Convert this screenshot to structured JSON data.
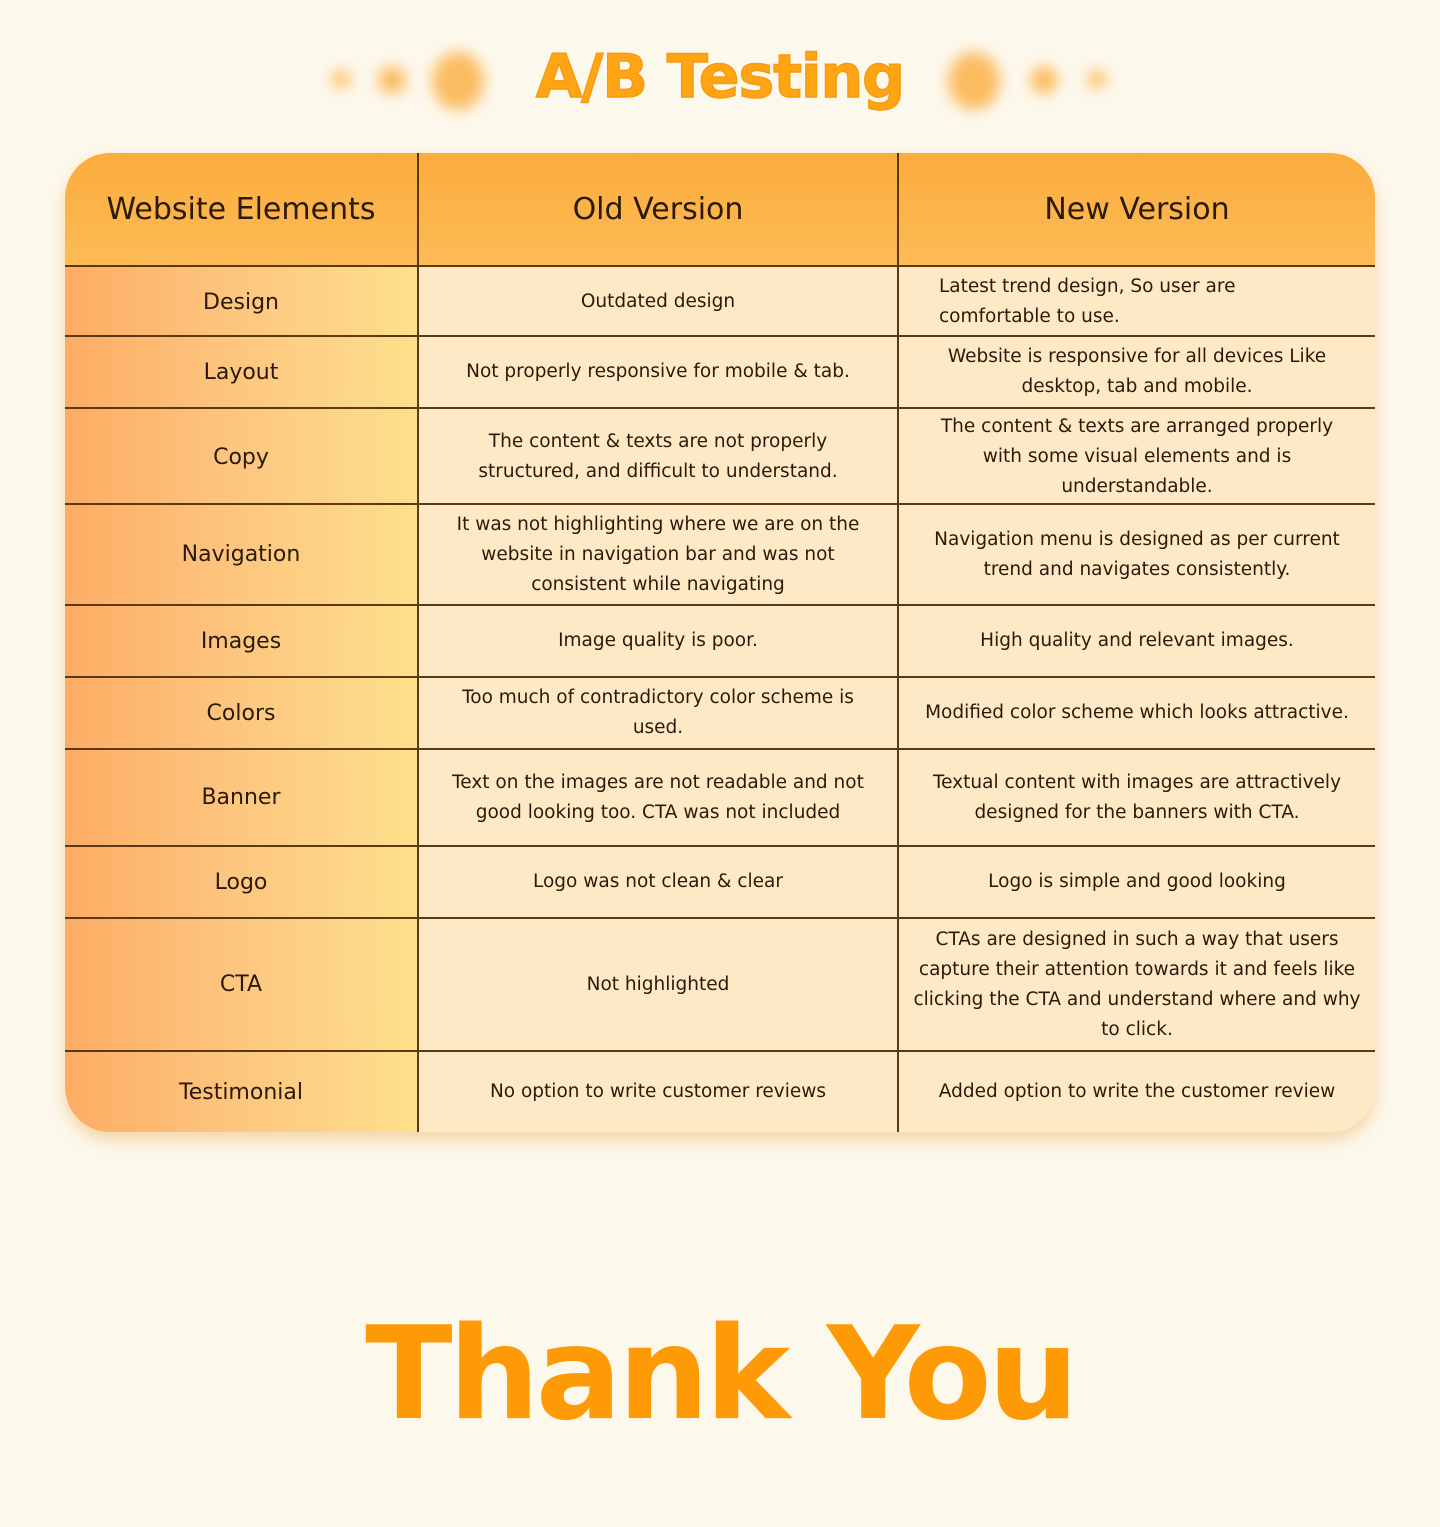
{
  "title": "A/B Testing",
  "footer": "Thank You",
  "colors": {
    "accent": "#ffa514",
    "thank_you": "#ff9a07",
    "background": "#fdf8ec",
    "header": "#fbac3c",
    "cell": "#fde9c6",
    "border": "#5a3a15"
  },
  "table": {
    "headers": [
      "Website Elements",
      "Old Version",
      "New Version"
    ],
    "rows": [
      {
        "element": "Design",
        "old": "Outdated design",
        "new": "Latest trend design, So user are comfortable to use."
      },
      {
        "element": "Layout",
        "old": "Not properly responsive for mobile & tab.",
        "new": "Website is responsive for all devices Like desktop, tab and mobile."
      },
      {
        "element": "Copy",
        "old": "The content & texts are not properly structured, and difficult to understand.",
        "new": "The content & texts are arranged properly with some visual elements and is understandable."
      },
      {
        "element": "Navigation",
        "old": "It was not highlighting where we are on the website in navigation bar and was not consistent while navigating",
        "new": "Navigation menu is designed as per current trend and navigates consistently."
      },
      {
        "element": "Images",
        "old": "Image quality is poor.",
        "new": "High quality and relevant images."
      },
      {
        "element": "Colors",
        "old": "Too much of contradictory color scheme is used.",
        "new": "Modified color scheme which looks attractive."
      },
      {
        "element": "Banner",
        "old": "Text on the images are not readable and not good looking too. CTA was not included",
        "new": "Textual content with images are attractively designed for the banners with CTA."
      },
      {
        "element": "Logo",
        "old": "Logo was not clean & clear",
        "new": "Logo is simple and good looking"
      },
      {
        "element": "CTA",
        "old": "Not highlighted",
        "new": "CTAs are designed in such a way that users capture their attention towards it and feels like clicking the CTA and understand where and why to click."
      },
      {
        "element": "Testimonial",
        "old": "No option to write customer reviews",
        "new": "Added option to write the customer review"
      }
    ]
  }
}
